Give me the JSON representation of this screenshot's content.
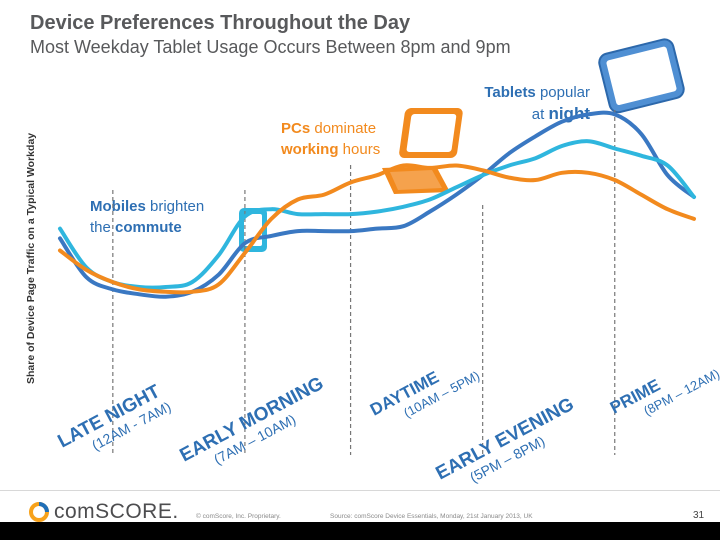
{
  "title": "Device Preferences Throughout the Day",
  "subtitle": "Most Weekday Tablet Usage Occurs Between 8pm and 9pm",
  "footer": {
    "logo": "comSCORE.",
    "copyright": "© comScore, Inc.   Proprietary.",
    "source": "Source: comScore Device Essentials, Monday, 21st January 2013, UK",
    "page": "31"
  },
  "annotations": {
    "tablets": {
      "bold": "Tablets",
      "text1": " popular",
      "text2": "at ",
      "bold2": "night"
    },
    "pcs": {
      "bold": "PCs",
      "text1": " dominate",
      "bold2": "working",
      "text2": " hours"
    },
    "mobiles": {
      "bold": "Mobiles",
      "text1": " brighten",
      "text2": "the ",
      "bold2": "commute"
    }
  },
  "colors": {
    "tablet": "#3a78c2",
    "mobile": "#2fb6de",
    "pc": "#f28a1e",
    "divider": "#777777",
    "annotation_blue": "#2e6fb3",
    "annotation_orange": "#f28a1e",
    "title": "#58595b"
  },
  "icons": [
    "tablet-device-icon",
    "laptop-device-icon",
    "mobile-device-icon",
    "comscore-logo-icon"
  ],
  "chart_data": {
    "type": "line",
    "title": "Device Preferences Throughout the Day",
    "ylabel": "Share of Device Page Traffic on a Typical Workday",
    "xlabel": "",
    "x": [
      0,
      1,
      2,
      3,
      4,
      5,
      6,
      7,
      8,
      9,
      10,
      11,
      12,
      13,
      14,
      15,
      16,
      17,
      18,
      19,
      20,
      21,
      22,
      23,
      24
    ],
    "ylim": [
      0,
      100
    ],
    "dividers_x": [
      2,
      7,
      11,
      16,
      21
    ],
    "series": [
      {
        "name": "Tablets",
        "values": [
          48,
          32,
          27,
          25,
          24,
          26,
          33,
          46,
          49,
          51,
          51,
          51,
          52,
          53,
          59,
          66,
          74,
          83,
          90,
          96,
          99,
          99,
          91,
          74,
          65
        ]
      },
      {
        "name": "Mobiles",
        "values": [
          52,
          36,
          30,
          28,
          28,
          30,
          41,
          57,
          60,
          58,
          58,
          58,
          59,
          61,
          64,
          69,
          74,
          78,
          81,
          86,
          88,
          85,
          82,
          78,
          65
        ]
      },
      {
        "name": "PCs",
        "values": [
          43,
          35,
          30,
          27,
          26,
          26,
          29,
          42,
          56,
          64,
          66,
          71,
          74,
          78,
          77,
          78,
          76,
          73,
          72,
          75,
          75,
          72,
          66,
          60,
          56
        ]
      }
    ],
    "regions": [
      {
        "name": "LATE NIGHT",
        "range": "(12AM - 7AM)"
      },
      {
        "name": "EARLY MORNING",
        "range": "(7AM – 10AM)"
      },
      {
        "name": "DAYTIME",
        "range": "(10AM – 5PM)"
      },
      {
        "name": "EARLY EVENING",
        "range": "(5PM – 8PM)"
      },
      {
        "name": "PRIME",
        "range": "(8PM – 12AM)"
      }
    ]
  }
}
